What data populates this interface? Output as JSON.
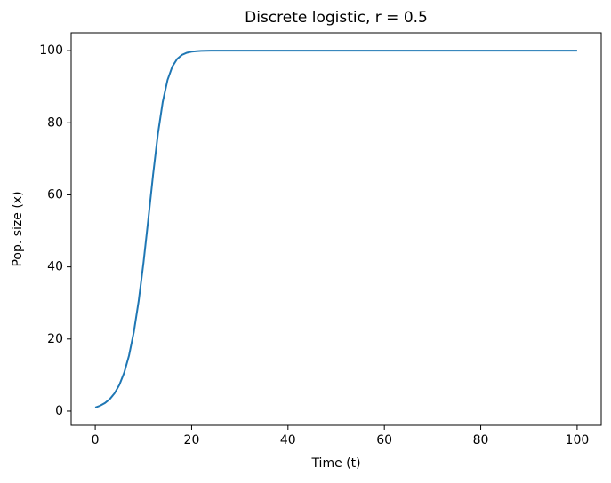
{
  "chart_data": {
    "type": "line",
    "title": "Discrete logistic, r = 0.5",
    "xlabel": "Time (t)",
    "ylabel": "Pop. size (x)",
    "x": [
      0,
      1,
      2,
      3,
      4,
      5,
      6,
      7,
      8,
      9,
      10,
      11,
      12,
      13,
      14,
      15,
      16,
      17,
      18,
      19,
      20,
      21,
      22,
      23,
      24,
      25,
      26,
      27,
      28,
      29,
      30,
      31,
      32,
      33,
      34,
      35,
      36,
      37,
      38,
      39,
      40,
      41,
      42,
      43,
      44,
      45,
      46,
      47,
      48,
      49,
      50,
      51,
      52,
      53,
      54,
      55,
      56,
      57,
      58,
      59,
      60,
      61,
      62,
      63,
      64,
      65,
      66,
      67,
      68,
      69,
      70,
      71,
      72,
      73,
      74,
      75,
      76,
      77,
      78,
      79,
      80,
      81,
      82,
      83,
      84,
      85,
      86,
      87,
      88,
      89,
      90,
      91,
      92,
      93,
      94,
      95,
      96,
      97,
      98,
      99,
      100
    ],
    "values": [
      1,
      1.5,
      2.23,
      3.32,
      4.93,
      7.27,
      10.64,
      15.4,
      21.91,
      30.46,
      41.06,
      53.16,
      65.61,
      76.89,
      85.77,
      91.87,
      95.61,
      97.71,
      98.83,
      99.41,
      99.7,
      99.85,
      99.93,
      99.96,
      99.98,
      99.99,
      100,
      100,
      100,
      100,
      100,
      100,
      100,
      100,
      100,
      100,
      100,
      100,
      100,
      100,
      100,
      100,
      100,
      100,
      100,
      100,
      100,
      100,
      100,
      100,
      100,
      100,
      100,
      100,
      100,
      100,
      100,
      100,
      100,
      100,
      100,
      100,
      100,
      100,
      100,
      100,
      100,
      100,
      100,
      100,
      100,
      100,
      100,
      100,
      100,
      100,
      100,
      100,
      100,
      100,
      100,
      100,
      100,
      100,
      100,
      100,
      100,
      100,
      100,
      100,
      100,
      100,
      100,
      100,
      100,
      100,
      100,
      100,
      100,
      100,
      100
    ],
    "color": "#1f77b4",
    "xlim": [
      -5,
      105
    ],
    "ylim": [
      -3.95,
      104.95
    ],
    "xticks": [
      0,
      20,
      40,
      60,
      80,
      100
    ],
    "yticks": [
      0,
      20,
      40,
      60,
      80,
      100
    ],
    "grid": false
  }
}
